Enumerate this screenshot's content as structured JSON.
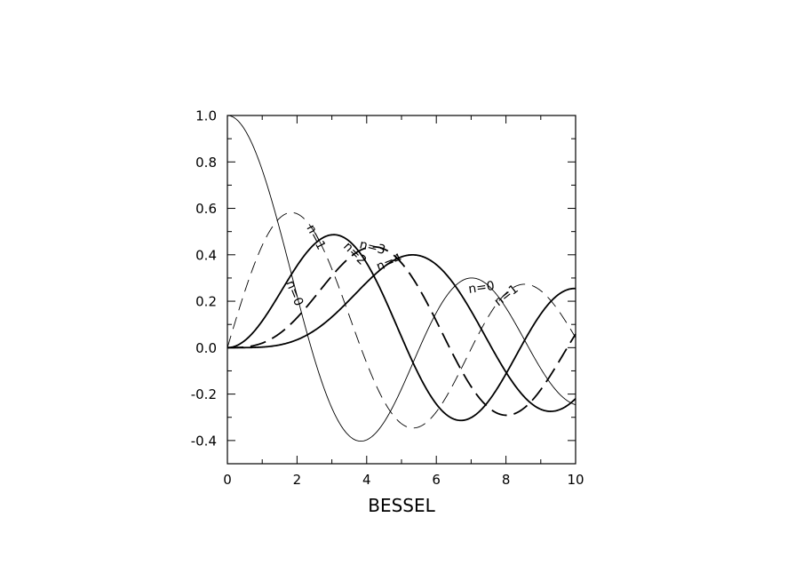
{
  "chart_data": {
    "type": "line",
    "title": "",
    "xlabel": "BESSEL",
    "ylabel": "",
    "xlim": [
      0,
      10
    ],
    "ylim": [
      -0.5,
      1.0
    ],
    "grid": false,
    "legend": "none",
    "x_ticks": [
      "0",
      "2",
      "4",
      "6",
      "8",
      "10"
    ],
    "y_ticks": [
      "1.0",
      "0.8",
      "0.6",
      "0.4",
      "0.2",
      "0.0",
      "-0.2",
      "-0.4"
    ],
    "x_tick_values": [
      0,
      2,
      4,
      6,
      8,
      10
    ],
    "y_tick_values": [
      1.0,
      0.8,
      0.6,
      0.4,
      0.2,
      0.0,
      -0.2,
      -0.4
    ],
    "series": [
      {
        "order": 0,
        "style": "thin-solid",
        "x": [
          0,
          1,
          2,
          2.4,
          3,
          3.8,
          4,
          5,
          5.5,
          6,
          7,
          7.0,
          8,
          9,
          10
        ],
        "values": [
          1.0,
          0.765,
          0.224,
          0.003,
          -0.26,
          -0.403,
          -0.397,
          -0.178,
          -0.007,
          0.151,
          0.3,
          0.3,
          0.172,
          -0.09,
          -0.246
        ]
      },
      {
        "order": 1,
        "style": "thin-dashed",
        "x": [
          0,
          1,
          1.84,
          3,
          3.83,
          5,
          5.33,
          6,
          7,
          7.02,
          8,
          8.54,
          9,
          10
        ],
        "values": [
          0.0,
          0.44,
          0.582,
          0.339,
          0.0,
          -0.328,
          -0.346,
          -0.277,
          -0.005,
          0.0,
          0.235,
          0.273,
          0.245,
          0.043
        ]
      },
      {
        "order": 2,
        "style": "solid",
        "x": [
          0,
          1,
          2,
          3.05,
          4,
          5,
          5.14,
          6,
          6.71,
          7,
          8,
          8.42,
          9,
          9.97,
          10
        ],
        "values": [
          0.0,
          0.115,
          0.353,
          0.486,
          0.364,
          0.047,
          0.0,
          -0.243,
          -0.313,
          -0.301,
          -0.113,
          0.0,
          0.145,
          0.271,
          0.255
        ]
      },
      {
        "order": 3,
        "style": "dashed",
        "x": [
          0,
          1,
          2,
          3,
          4.2,
          5,
          6,
          6.38,
          7,
          8,
          8.02,
          9,
          9.76,
          10
        ],
        "values": [
          0.0,
          0.02,
          0.129,
          0.309,
          0.434,
          0.365,
          0.115,
          0.0,
          -0.168,
          -0.291,
          -0.291,
          -0.181,
          0.0,
          0.058
        ]
      },
      {
        "order": 4,
        "style": "solid",
        "x": [
          0,
          1,
          2,
          3,
          4,
          5.32,
          6,
          7,
          7.59,
          8,
          9,
          9.36,
          10
        ],
        "values": [
          0.0,
          0.002,
          0.034,
          0.132,
          0.281,
          0.396,
          0.358,
          0.158,
          0.0,
          -0.105,
          -0.265,
          -0.272,
          -0.22
        ]
      }
    ],
    "annotations": [
      "n=0",
      "n=1",
      "n=2",
      "n=3",
      "n=4",
      "n=0",
      "n=1"
    ]
  }
}
